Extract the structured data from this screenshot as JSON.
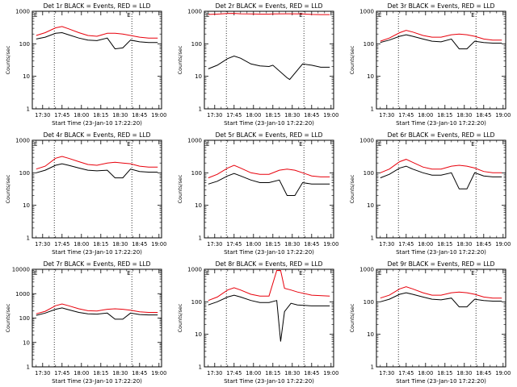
{
  "x_tick_labels": [
    "17:30",
    "17:45",
    "18:00",
    "18:15",
    "18:30",
    "18:45",
    "19:00"
  ],
  "y_tick_labels": [
    "1",
    "10",
    "100",
    "1000"
  ],
  "y_tick_labels_tall": [
    "1",
    "10",
    "100",
    "1000",
    "10000"
  ],
  "xlabel": "Start Time (23-Jan-10 17:22:20)",
  "ylabel": "Counts/sec",
  "corner_mark": "E",
  "colors": {
    "events": "#000000",
    "lld": "#e8000b"
  },
  "chart_data": [
    {
      "type": "line",
      "title": "Det 1r BLACK = Events, RED = LLD",
      "x": [
        "17:25",
        "17:32",
        "17:40",
        "17:45",
        "17:50",
        "17:58",
        "18:05",
        "18:12",
        "18:20",
        "18:26",
        "18:32",
        "18:38",
        "18:45",
        "18:52",
        "18:59"
      ],
      "series": [
        {
          "name": "Events",
          "values": [
            140,
            160,
            210,
            220,
            190,
            150,
            130,
            125,
            150,
            70,
            75,
            130,
            115,
            110,
            110
          ]
        },
        {
          "name": "LLD",
          "values": [
            180,
            220,
            310,
            340,
            290,
            220,
            180,
            170,
            210,
            210,
            200,
            180,
            160,
            150,
            150
          ]
        }
      ],
      "ylim": [
        1,
        1000
      ],
      "yscale": "log",
      "vlines": [
        "17:39",
        "18:39"
      ]
    },
    {
      "type": "line",
      "title": "Det 2r BLACK = Events, RED = LLD",
      "x": [
        "17:25",
        "17:32",
        "17:40",
        "17:45",
        "17:50",
        "17:58",
        "18:05",
        "18:12",
        "18:15",
        "18:26",
        "18:28",
        "18:38",
        "18:45",
        "18:52",
        "18:59"
      ],
      "series": [
        {
          "name": "Events",
          "values": [
            17,
            22,
            35,
            42,
            36,
            24,
            21,
            20,
            22,
            9,
            8,
            24,
            22,
            19,
            19
          ]
        },
        {
          "name": "LLD",
          "values": [
            800,
            820,
            850,
            860,
            840,
            830,
            820,
            820,
            830,
            840,
            840,
            830,
            800,
            790,
            790
          ]
        }
      ],
      "ylim": [
        1,
        1000
      ],
      "yscale": "log",
      "vlines": [
        "17:39",
        "18:39"
      ]
    },
    {
      "type": "line",
      "title": "Det 3r BLACK = Events, RED = LLD",
      "x": [
        "17:25",
        "17:32",
        "17:40",
        "17:45",
        "17:50",
        "17:58",
        "18:05",
        "18:12",
        "18:20",
        "18:26",
        "18:32",
        "18:38",
        "18:45",
        "18:52",
        "18:59"
      ],
      "series": [
        {
          "name": "Events",
          "values": [
            110,
            130,
            170,
            190,
            170,
            140,
            120,
            115,
            140,
            70,
            70,
            120,
            110,
            105,
            105
          ]
        },
        {
          "name": "LLD",
          "values": [
            120,
            150,
            220,
            260,
            230,
            180,
            160,
            160,
            190,
            200,
            190,
            170,
            140,
            130,
            130
          ]
        }
      ],
      "ylim": [
        1,
        1000
      ],
      "yscale": "log",
      "vlines": [
        "17:39",
        "18:39"
      ]
    },
    {
      "type": "line",
      "title": "Det 4r BLACK = Events, RED = LLD",
      "x": [
        "17:25",
        "17:32",
        "17:40",
        "17:45",
        "17:50",
        "17:58",
        "18:05",
        "18:12",
        "18:20",
        "18:26",
        "18:32",
        "18:38",
        "18:45",
        "18:52",
        "18:59"
      ],
      "series": [
        {
          "name": "Events",
          "values": [
            100,
            120,
            170,
            190,
            170,
            140,
            120,
            115,
            120,
            70,
            70,
            130,
            110,
            105,
            105
          ]
        },
        {
          "name": "LLD",
          "values": [
            130,
            160,
            280,
            320,
            280,
            220,
            180,
            170,
            200,
            210,
            200,
            190,
            160,
            150,
            150
          ]
        }
      ],
      "ylim": [
        1,
        1000
      ],
      "yscale": "log",
      "vlines": [
        "17:39",
        "18:39"
      ]
    },
    {
      "type": "line",
      "title": "Det 5r BLACK = Events, RED = LLD",
      "x": [
        "17:25",
        "17:32",
        "17:40",
        "17:45",
        "17:50",
        "17:58",
        "18:05",
        "18:12",
        "18:20",
        "18:26",
        "18:32",
        "18:38",
        "18:45",
        "18:52",
        "18:59"
      ],
      "series": [
        {
          "name": "Events",
          "values": [
            45,
            55,
            80,
            95,
            80,
            60,
            50,
            50,
            60,
            20,
            20,
            50,
            45,
            45,
            45
          ]
        },
        {
          "name": "LLD",
          "values": [
            70,
            90,
            140,
            170,
            140,
            100,
            90,
            90,
            120,
            130,
            120,
            100,
            80,
            75,
            75
          ]
        }
      ],
      "ylim": [
        1,
        1000
      ],
      "yscale": "log",
      "vlines": [
        "17:39",
        "18:39"
      ]
    },
    {
      "type": "line",
      "title": "Det 6r BLACK = Events, RED = LLD",
      "x": [
        "17:25",
        "17:32",
        "17:40",
        "17:45",
        "17:50",
        "17:58",
        "18:05",
        "18:12",
        "18:20",
        "18:26",
        "18:32",
        "18:38",
        "18:45",
        "18:52",
        "18:59"
      ],
      "series": [
        {
          "name": "Events",
          "values": [
            70,
            90,
            140,
            160,
            130,
            100,
            85,
            85,
            100,
            32,
            32,
            100,
            80,
            75,
            75
          ]
        },
        {
          "name": "LLD",
          "values": [
            100,
            130,
            220,
            260,
            210,
            150,
            130,
            130,
            160,
            170,
            160,
            140,
            110,
            100,
            100
          ]
        }
      ],
      "ylim": [
        1,
        1000
      ],
      "yscale": "log",
      "vlines": [
        "17:39",
        "18:39"
      ]
    },
    {
      "type": "line",
      "title": "Det 7r BLACK = Events, RED = LLD",
      "x": [
        "17:25",
        "17:32",
        "17:40",
        "17:45",
        "17:50",
        "17:58",
        "18:05",
        "18:12",
        "18:20",
        "18:26",
        "18:32",
        "18:38",
        "18:45",
        "18:52",
        "18:59"
      ],
      "series": [
        {
          "name": "Events",
          "values": [
            130,
            160,
            230,
            260,
            220,
            170,
            150,
            145,
            160,
            90,
            90,
            160,
            140,
            135,
            135
          ]
        },
        {
          "name": "LLD",
          "values": [
            150,
            190,
            320,
            380,
            320,
            240,
            200,
            195,
            230,
            240,
            230,
            210,
            180,
            170,
            170
          ]
        }
      ],
      "ylim": [
        1,
        10000
      ],
      "yscale": "log",
      "vlines": [
        "17:39",
        "18:39"
      ]
    },
    {
      "type": "line",
      "title": "Det 8r BLACK = Events, RED = LLD",
      "x": [
        "17:25",
        "17:32",
        "17:40",
        "17:45",
        "17:50",
        "17:58",
        "18:05",
        "18:12",
        "18:18",
        "18:21",
        "18:24",
        "18:29",
        "18:34",
        "18:45",
        "18:59"
      ],
      "series": [
        {
          "name": "Events",
          "values": [
            80,
            100,
            140,
            160,
            140,
            110,
            95,
            95,
            110,
            6,
            50,
            90,
            80,
            75,
            75
          ]
        },
        {
          "name": "LLD",
          "values": [
            110,
            140,
            230,
            270,
            230,
            170,
            150,
            150,
            920,
            920,
            260,
            230,
            200,
            160,
            150
          ]
        }
      ],
      "ylim": [
        1,
        1000
      ],
      "yscale": "log",
      "vlines": [
        "17:39",
        "18:39"
      ]
    },
    {
      "type": "line",
      "title": "Det 9r BLACK = Events, RED = LLD",
      "x": [
        "17:25",
        "17:32",
        "17:40",
        "17:45",
        "17:50",
        "17:58",
        "18:05",
        "18:12",
        "18:20",
        "18:26",
        "18:32",
        "18:38",
        "18:45",
        "18:52",
        "18:59"
      ],
      "series": [
        {
          "name": "Events",
          "values": [
            100,
            120,
            170,
            190,
            170,
            140,
            120,
            115,
            130,
            70,
            70,
            120,
            110,
            105,
            105
          ]
        },
        {
          "name": "LLD",
          "values": [
            130,
            160,
            250,
            290,
            250,
            190,
            160,
            160,
            190,
            200,
            190,
            170,
            140,
            130,
            130
          ]
        }
      ],
      "ylim": [
        1,
        1000
      ],
      "yscale": "log",
      "vlines": [
        "17:39",
        "18:39"
      ]
    }
  ]
}
